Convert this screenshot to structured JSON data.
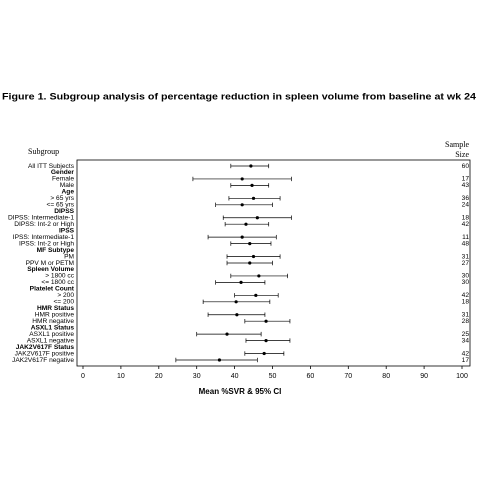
{
  "chart_data": {
    "type": "forest",
    "title": "Figure 1. Subgroup analysis of percentage reduction in spleen volume from baseline at wk 24",
    "row_header": "Subgroup",
    "size_header": [
      "Sample",
      "Size"
    ],
    "x_label": "Mean %SVR & 95% CI",
    "color": "#000000",
    "categories": [
      "All ITT Subjects",
      "Gender",
      "Female",
      "Male",
      "Age",
      "> 65 yrs",
      "<= 65 yrs",
      "DIPSS",
      "DIPSS: Intermediate-1",
      "DIPSS: Int-2 or High",
      "IPSS",
      "IPSS: Intermediate-1",
      "IPSS: Int-2 or High",
      "MF Subtype",
      "PM",
      "PPV M or PETM",
      "Spleen Volume",
      "> 1800 cc",
      "<= 1800 cc",
      "Platelet Count",
      "> 200",
      "<= 200",
      "HMR Status",
      "HMR positive",
      "HMR negative",
      "ASXL1 Status",
      "ASXL1 positive",
      "ASXL1 negative",
      "JAK2V617F Status",
      "JAK2V617F positive",
      "JAK2V617F negative"
    ],
    "values": [
      44.3,
      null,
      42,
      44.6,
      null,
      45,
      42,
      null,
      46,
      43,
      null,
      42,
      44,
      null,
      45,
      44,
      null,
      46.4,
      41.7,
      null,
      45.6,
      40.4,
      null,
      40.6,
      48.3,
      null,
      38,
      48.3,
      null,
      47.8,
      36
    ],
    "lower": [
      39,
      null,
      29,
      39,
      null,
      38.5,
      35,
      null,
      37,
      37.5,
      null,
      33,
      39,
      null,
      38,
      38,
      null,
      39,
      35,
      null,
      40,
      31.7,
      null,
      33,
      42.7,
      null,
      30,
      43,
      null,
      42.7,
      24.5
    ],
    "upper": [
      49,
      null,
      55,
      49,
      null,
      52,
      50,
      null,
      55,
      49,
      null,
      51,
      49.6,
      null,
      52,
      50,
      null,
      54,
      48,
      null,
      51.5,
      49.3,
      null,
      48,
      54.6,
      null,
      47,
      54.6,
      null,
      53,
      46
    ],
    "sample_size": [
      60,
      null,
      17,
      43,
      null,
      36,
      24,
      null,
      18,
      42,
      null,
      11,
      48,
      null,
      31,
      27,
      null,
      30,
      30,
      null,
      42,
      18,
      null,
      31,
      28,
      null,
      25,
      34,
      null,
      42,
      17
    ],
    "xlim": [
      0,
      100
    ],
    "xticks": [
      0,
      10,
      20,
      30,
      40,
      50,
      60,
      70,
      80,
      90,
      100
    ]
  }
}
